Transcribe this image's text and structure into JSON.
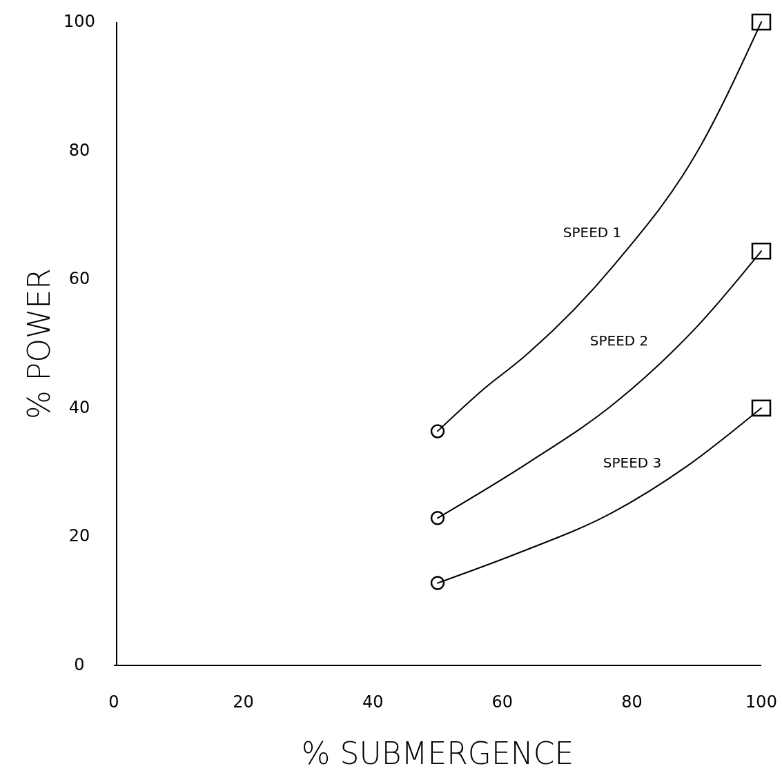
{
  "chart_data": {
    "type": "line",
    "xlabel": "% SUBMERGENCE",
    "ylabel": "% POWER",
    "xlim": [
      0,
      100
    ],
    "ylim": [
      0,
      100
    ],
    "xticks": [
      0,
      20,
      40,
      60,
      80,
      100
    ],
    "yticks": [
      0,
      20,
      40,
      60,
      80,
      100
    ],
    "grid": false,
    "line_style": "solid",
    "series": [
      {
        "name": "SPEED 1",
        "color": "#000000",
        "marker": "none",
        "x": [
          50,
          57.4,
          62.8,
          77.4,
          90.2,
          100
        ],
        "values": [
          36.4,
          43.2,
          47.5,
          62.4,
          80,
          100
        ]
      },
      {
        "name": "SPEED 2",
        "color": "#000000",
        "marker": "none",
        "x": [
          50,
          64,
          77.4,
          90.2,
          100
        ],
        "values": [
          22.9,
          31.5,
          40.8,
          52.8,
          64.4
        ]
      },
      {
        "name": "SPEED 3",
        "color": "#000000",
        "marker": "none",
        "x": [
          50,
          62.8,
          76.7,
          88.7,
          100
        ],
        "values": [
          12.8,
          17.6,
          23.6,
          31.1,
          40
        ]
      },
      {
        "type": "scatter",
        "color": "#000000",
        "marker": "circle",
        "x": [
          50,
          50,
          50
        ],
        "values": [
          36.4,
          22.9,
          12.8
        ]
      },
      {
        "type": "scatter",
        "color": "#000000",
        "marker": "square",
        "x": [
          100,
          100,
          100
        ],
        "values": [
          100,
          64.4,
          40
        ]
      }
    ]
  }
}
